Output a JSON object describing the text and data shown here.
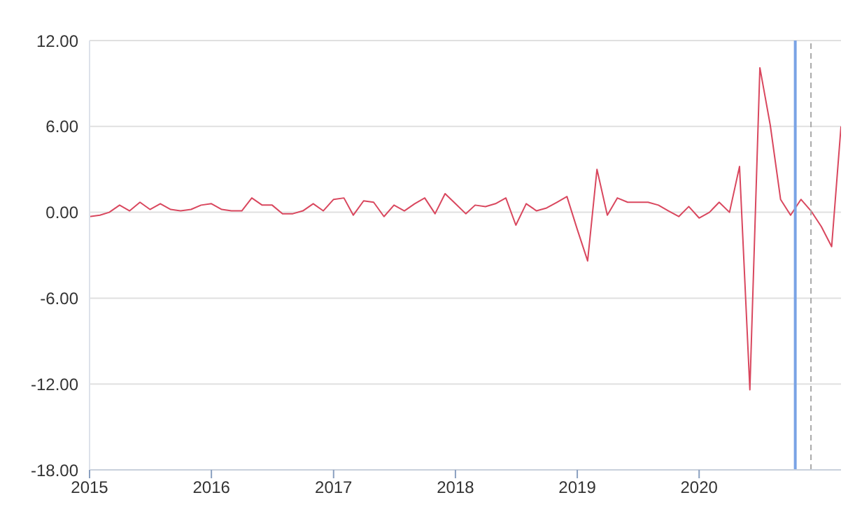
{
  "chart_data": {
    "type": "line",
    "x": [
      "2015-01",
      "2015-02",
      "2015-03",
      "2015-04",
      "2015-05",
      "2015-06",
      "2015-07",
      "2015-08",
      "2015-09",
      "2015-10",
      "2015-11",
      "2015-12",
      "2016-01",
      "2016-02",
      "2016-03",
      "2016-04",
      "2016-05",
      "2016-06",
      "2016-07",
      "2016-08",
      "2016-09",
      "2016-10",
      "2016-11",
      "2016-12",
      "2017-01",
      "2017-02",
      "2017-03",
      "2017-04",
      "2017-05",
      "2017-06",
      "2017-07",
      "2017-08",
      "2017-09",
      "2017-10",
      "2017-11",
      "2017-12",
      "2018-01",
      "2018-02",
      "2018-03",
      "2018-04",
      "2018-05",
      "2018-06",
      "2018-07",
      "2018-08",
      "2018-09",
      "2018-10",
      "2018-11",
      "2018-12",
      "2019-01",
      "2019-02",
      "2019-03",
      "2019-04",
      "2019-05",
      "2019-06",
      "2019-07",
      "2019-08",
      "2019-09",
      "2019-10",
      "2019-11",
      "2019-12",
      "2020-01",
      "2020-02",
      "2020-03",
      "2020-04",
      "2020-05",
      "2020-06",
      "2020-07",
      "2020-08",
      "2020-09",
      "2020-10",
      "2020-11",
      "2020-12",
      "2021-01",
      "2021-02",
      "2021-03"
    ],
    "series": [
      {
        "color": "#d9475e",
        "values": [
          -0.3,
          -0.2,
          0.0,
          0.5,
          0.1,
          0.7,
          0.2,
          0.6,
          0.2,
          0.1,
          0.2,
          0.5,
          0.6,
          0.2,
          0.1,
          0.1,
          1.0,
          0.5,
          0.5,
          -0.1,
          -0.1,
          0.1,
          0.6,
          0.1,
          0.9,
          1.0,
          -0.2,
          0.8,
          0.7,
          -0.3,
          0.5,
          0.1,
          0.6,
          1.0,
          -0.1,
          1.3,
          0.6,
          -0.1,
          0.5,
          0.4,
          0.6,
          1.0,
          -0.9,
          0.6,
          0.1,
          0.3,
          0.7,
          1.1,
          -1.2,
          -3.4,
          3.0,
          -0.2,
          1.0,
          0.7,
          0.7,
          0.7,
          0.5,
          0.1,
          -0.3,
          0.4,
          -0.4,
          0.0,
          0.7,
          0.0,
          3.2,
          -12.4,
          10.1,
          6.1,
          0.9,
          -0.2,
          0.9,
          0.1,
          -1.0,
          -2.4,
          6.0
        ]
      }
    ],
    "xlim": [
      "2015-01",
      "2021-03"
    ],
    "xticks": [
      "2015",
      "2016",
      "2017",
      "2018",
      "2019",
      "2020"
    ],
    "ylim": [
      -18,
      12
    ],
    "yticks": [
      {
        "value": -18,
        "label": "-18.00"
      },
      {
        "value": -12,
        "label": "-12.00"
      },
      {
        "value": -6,
        "label": "-6.00"
      },
      {
        "value": 0,
        "label": "0.00"
      },
      {
        "value": 6,
        "label": "6.00"
      },
      {
        "value": 12,
        "label": "12.00"
      }
    ],
    "grid": "y",
    "ref_lines": [
      {
        "axis": "x",
        "value": "2020-10-15",
        "color": "#7aa3e5",
        "line_style": "solid"
      },
      {
        "axis": "x",
        "value": "2020-12",
        "color": "#aaaaaa",
        "line_style": "dashed"
      }
    ]
  }
}
